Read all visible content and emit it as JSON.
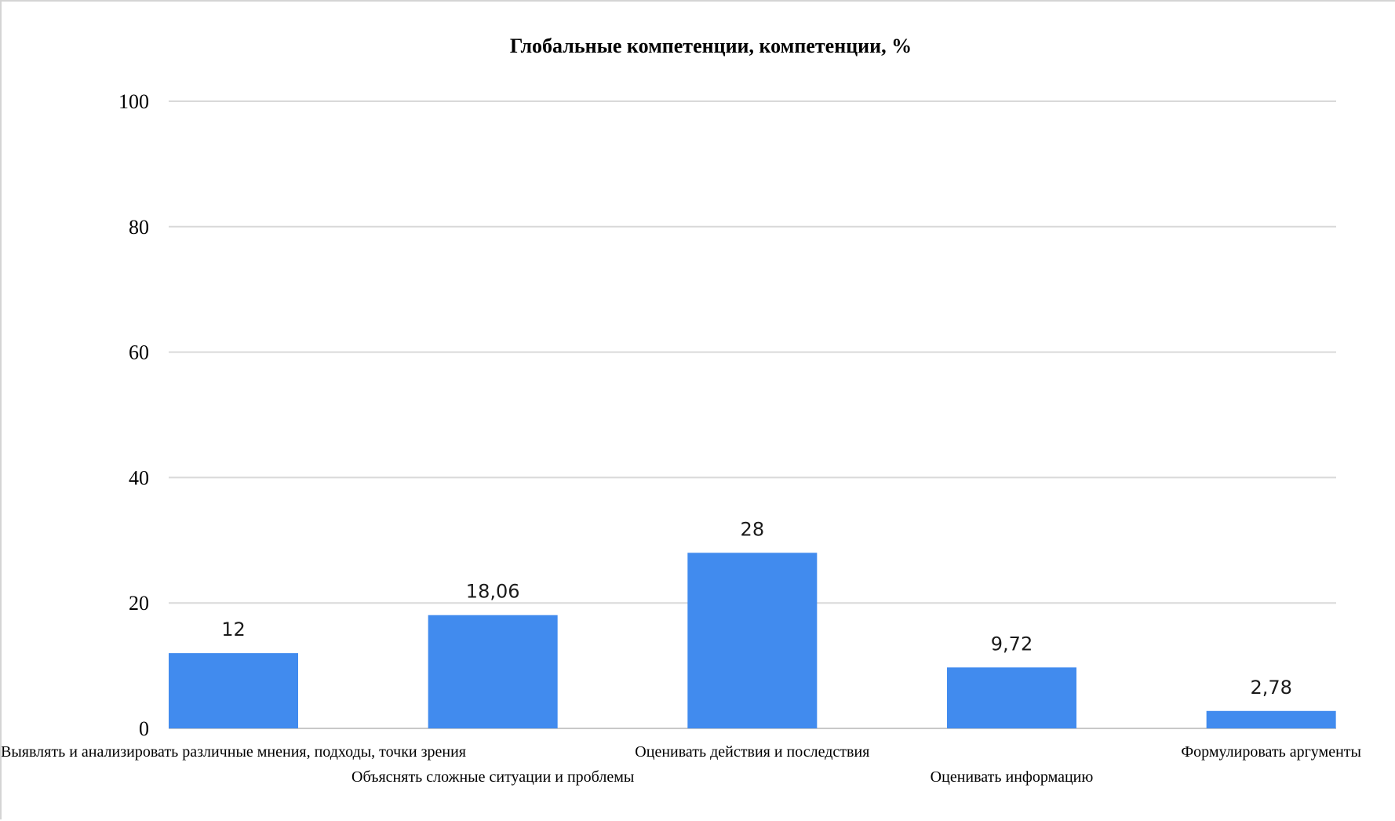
{
  "chart_data": {
    "type": "bar",
    "title": "Глобальные компетенции, компетенции, %",
    "xlabel": "",
    "ylabel": "",
    "categories": [
      "Выявлять и анализировать различные мнения, подходы, точки зрения",
      "Объяснять сложные ситуации и проблемы",
      "Оценивать действия и последствия",
      "Оценивать информацию",
      "Формулировать аргументы"
    ],
    "values": [
      12,
      18.06,
      28,
      9.72,
      2.78
    ],
    "value_labels": [
      "12",
      "18,06",
      "28",
      "9,72",
      "2,78"
    ],
    "ylim": [
      0,
      100
    ],
    "yticks": [
      0,
      20,
      40,
      60,
      80,
      100
    ],
    "grid": true,
    "legend": "none",
    "bar_color": "#418BEE"
  }
}
